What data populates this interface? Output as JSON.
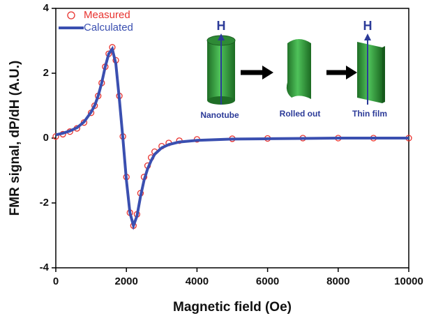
{
  "chart_data": {
    "type": "line",
    "xlabel": "Magnetic field (Oe)",
    "ylabel": "FMR signal, dP/dH (A.U.)",
    "x": [
      0,
      200,
      400,
      600,
      800,
      1000,
      1100,
      1200,
      1300,
      1400,
      1500,
      1600,
      1700,
      1800,
      1900,
      2000,
      2100,
      2200,
      2300,
      2400,
      2500,
      2600,
      2700,
      2800,
      3000,
      3200,
      3500,
      4000,
      5000,
      6000,
      7000,
      8000,
      9000,
      10000
    ],
    "series": [
      {
        "name": "Measured",
        "color": "#e8322e",
        "style": "markers",
        "values": [
          0.05,
          0.12,
          0.2,
          0.3,
          0.48,
          0.78,
          1.0,
          1.3,
          1.7,
          2.2,
          2.6,
          2.8,
          2.4,
          1.3,
          0.05,
          -1.2,
          -2.3,
          -2.7,
          -2.35,
          -1.7,
          -1.2,
          -0.85,
          -0.6,
          -0.42,
          -0.25,
          -0.15,
          -0.08,
          -0.04,
          -0.02,
          -0.01,
          0,
          0,
          0,
          0
        ]
      },
      {
        "name": "Calculated",
        "color": "#3a4fb0",
        "style": "line",
        "values": [
          0.1,
          0.15,
          0.22,
          0.32,
          0.5,
          0.8,
          1.0,
          1.3,
          1.7,
          2.2,
          2.6,
          2.75,
          2.3,
          1.2,
          0.0,
          -1.3,
          -2.3,
          -2.7,
          -2.4,
          -1.8,
          -1.3,
          -0.95,
          -0.7,
          -0.5,
          -0.3,
          -0.2,
          -0.12,
          -0.07,
          -0.03,
          -0.02,
          -0.01,
          0,
          0,
          0
        ]
      }
    ],
    "xlim": [
      0,
      10000
    ],
    "xticks": [
      0,
      2000,
      4000,
      6000,
      8000,
      10000
    ],
    "ylim": [
      -4,
      4
    ],
    "yticks": [
      -4,
      -2,
      0,
      2,
      4
    ],
    "legend": "upper left"
  },
  "inset": {
    "stages": [
      {
        "label": "Nanotube",
        "field": "H"
      },
      {
        "label": "Rolled out"
      },
      {
        "label": "Thin film",
        "field": "H"
      }
    ]
  }
}
